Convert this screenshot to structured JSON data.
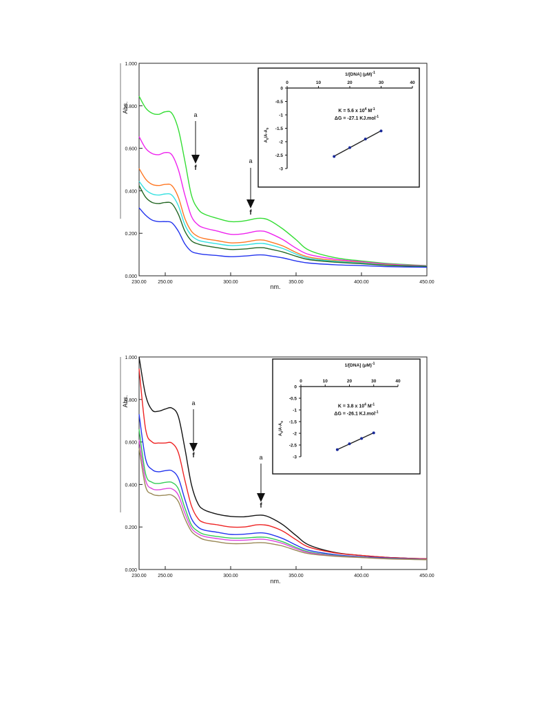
{
  "chart_data": [
    {
      "type": "line",
      "xlabel": "nm.",
      "ylabel": "Abs.",
      "xlim": [
        230,
        450
      ],
      "ylim": [
        0,
        1
      ],
      "x_ticks": [
        "230.00",
        "250.00",
        "300.00",
        "350.00",
        "400.00",
        "450.00"
      ],
      "y_ticks": [
        "0.000",
        "0.200",
        "0.400",
        "0.600",
        "0.800",
        "1.000"
      ],
      "x": [
        230,
        235,
        240,
        245,
        250,
        255,
        260,
        265,
        270,
        275,
        280,
        290,
        300,
        310,
        320,
        325,
        330,
        340,
        350,
        360,
        380,
        400,
        420,
        450
      ],
      "series": [
        {
          "color": "#33dd33",
          "values": [
            0.845,
            0.79,
            0.765,
            0.76,
            0.772,
            0.765,
            0.69,
            0.54,
            0.38,
            0.315,
            0.29,
            0.27,
            0.255,
            0.258,
            0.27,
            0.27,
            0.26,
            0.22,
            0.17,
            0.12,
            0.085,
            0.07,
            0.058,
            0.048
          ]
        },
        {
          "color": "#ee22ee",
          "values": [
            0.655,
            0.6,
            0.575,
            0.57,
            0.58,
            0.57,
            0.5,
            0.38,
            0.28,
            0.24,
            0.225,
            0.21,
            0.195,
            0.198,
            0.21,
            0.21,
            0.2,
            0.17,
            0.13,
            0.1,
            0.078,
            0.066,
            0.055,
            0.047
          ]
        },
        {
          "color": "#ff7722",
          "values": [
            0.505,
            0.455,
            0.43,
            0.425,
            0.43,
            0.425,
            0.37,
            0.27,
            0.21,
            0.185,
            0.175,
            0.165,
            0.155,
            0.158,
            0.168,
            0.168,
            0.16,
            0.14,
            0.11,
            0.088,
            0.072,
            0.062,
            0.052,
            0.046
          ]
        },
        {
          "color": "#33e0e0",
          "values": [
            0.445,
            0.405,
            0.385,
            0.38,
            0.385,
            0.38,
            0.33,
            0.24,
            0.19,
            0.168,
            0.16,
            0.15,
            0.142,
            0.145,
            0.152,
            0.152,
            0.146,
            0.128,
            0.102,
            0.082,
            0.068,
            0.06,
            0.05,
            0.045
          ]
        },
        {
          "color": "#226622",
          "values": [
            0.425,
            0.37,
            0.345,
            0.34,
            0.345,
            0.34,
            0.29,
            0.21,
            0.165,
            0.15,
            0.142,
            0.132,
            0.124,
            0.126,
            0.132,
            0.132,
            0.126,
            0.112,
            0.092,
            0.076,
            0.064,
            0.057,
            0.049,
            0.044
          ]
        },
        {
          "color": "#2233ee",
          "values": [
            0.32,
            0.285,
            0.262,
            0.255,
            0.255,
            0.25,
            0.21,
            0.15,
            0.115,
            0.105,
            0.1,
            0.095,
            0.09,
            0.093,
            0.098,
            0.098,
            0.094,
            0.084,
            0.07,
            0.06,
            0.052,
            0.048,
            0.043,
            0.04
          ]
        }
      ],
      "arrows": [
        {
          "top": "a",
          "bottom": "f"
        },
        {
          "top": "a",
          "bottom": "f"
        }
      ],
      "inset": {
        "type": "scatter",
        "xlabel": "1/[DNA] (μM)",
        "xlabel_sup": "-1",
        "ylabel_parts": [
          "A",
          "0",
          "/A-A",
          "0"
        ],
        "xlim": [
          0,
          40
        ],
        "ylim": [
          -3,
          0
        ],
        "x_ticks": [
          "0",
          "10",
          "20",
          "30",
          "40"
        ],
        "y_ticks": [
          "0",
          "-0.5",
          "-1",
          "-1.5",
          "-2",
          "-2.5",
          "-3"
        ],
        "x": [
          15,
          20,
          25,
          30
        ],
        "y": [
          -2.55,
          -2.22,
          -1.9,
          -1.6
        ],
        "annotation_line1_parts": [
          "K = 5.6 x 10",
          "4",
          " M",
          "-1"
        ],
        "annotation_line2": "ΔG = -27.1 KJ.mol",
        "annotation_line2_sup": "-1"
      }
    },
    {
      "type": "line",
      "xlabel": "nm.",
      "ylabel": "Abs.",
      "xlim": [
        230,
        450
      ],
      "ylim": [
        0,
        1
      ],
      "x_ticks": [
        "230.00",
        "250.00",
        "300.00",
        "350.00",
        "400.00",
        "450.00"
      ],
      "y_ticks": [
        "0.000",
        "0.200",
        "0.400",
        "0.600",
        "0.800",
        "1.000"
      ],
      "x": [
        230,
        235,
        240,
        245,
        250,
        255,
        260,
        265,
        270,
        275,
        280,
        290,
        300,
        310,
        320,
        325,
        330,
        340,
        350,
        360,
        380,
        400,
        420,
        450
      ],
      "series": [
        {
          "color": "#111111",
          "values": [
            1.0,
            0.82,
            0.75,
            0.745,
            0.755,
            0.76,
            0.72,
            0.57,
            0.4,
            0.31,
            0.28,
            0.26,
            0.25,
            0.248,
            0.255,
            0.255,
            0.245,
            0.21,
            0.16,
            0.115,
            0.08,
            0.066,
            0.057,
            0.05
          ]
        },
        {
          "color": "#ee2222",
          "values": [
            0.945,
            0.66,
            0.6,
            0.595,
            0.595,
            0.595,
            0.55,
            0.42,
            0.3,
            0.24,
            0.22,
            0.21,
            0.2,
            0.2,
            0.21,
            0.21,
            0.205,
            0.18,
            0.14,
            0.105,
            0.078,
            0.066,
            0.057,
            0.05
          ]
        },
        {
          "color": "#2233ee",
          "values": [
            0.73,
            0.52,
            0.47,
            0.46,
            0.465,
            0.465,
            0.43,
            0.33,
            0.24,
            0.2,
            0.185,
            0.175,
            0.165,
            0.166,
            0.172,
            0.172,
            0.166,
            0.145,
            0.115,
            0.09,
            0.07,
            0.06,
            0.054,
            0.048
          ]
        },
        {
          "color": "#33cc55",
          "values": [
            0.66,
            0.45,
            0.41,
            0.405,
            0.41,
            0.41,
            0.38,
            0.29,
            0.21,
            0.18,
            0.165,
            0.155,
            0.148,
            0.148,
            0.152,
            0.152,
            0.148,
            0.13,
            0.104,
            0.083,
            0.066,
            0.058,
            0.052,
            0.047
          ]
        },
        {
          "color": "#dd44dd",
          "values": [
            0.61,
            0.42,
            0.38,
            0.375,
            0.38,
            0.38,
            0.35,
            0.265,
            0.195,
            0.168,
            0.155,
            0.145,
            0.138,
            0.138,
            0.142,
            0.142,
            0.138,
            0.122,
            0.098,
            0.079,
            0.064,
            0.057,
            0.051,
            0.047
          ]
        },
        {
          "color": "#998855",
          "values": [
            0.57,
            0.39,
            0.355,
            0.348,
            0.35,
            0.35,
            0.32,
            0.24,
            0.18,
            0.155,
            0.14,
            0.13,
            0.122,
            0.122,
            0.126,
            0.126,
            0.122,
            0.11,
            0.09,
            0.074,
            0.062,
            0.056,
            0.05,
            0.046
          ]
        }
      ],
      "arrows": [
        {
          "top": "a",
          "bottom": "f"
        },
        {
          "top": "a",
          "bottom": "f"
        }
      ],
      "inset": {
        "type": "scatter",
        "xlabel": "1/[DNA] (μM)",
        "xlabel_sup": "-1",
        "ylabel_parts": [
          "A",
          "0",
          "/A-A",
          "0"
        ],
        "xlim": [
          0,
          40
        ],
        "ylim": [
          -3,
          0
        ],
        "x_ticks": [
          "0",
          "10",
          "20",
          "30",
          "40"
        ],
        "y_ticks": [
          "0",
          "-0.5",
          "-1",
          "-1.5",
          "-2",
          "-2.5",
          "-3"
        ],
        "x": [
          15,
          20,
          25,
          30
        ],
        "y": [
          -2.7,
          -2.45,
          -2.22,
          -1.98
        ],
        "annotation_line1_parts": [
          "K = 3.8 x 10",
          "4",
          " M",
          "-1"
        ],
        "annotation_line2": "ΔG = -26.1 KJ.mol",
        "annotation_line2_sup": "-1"
      }
    }
  ]
}
